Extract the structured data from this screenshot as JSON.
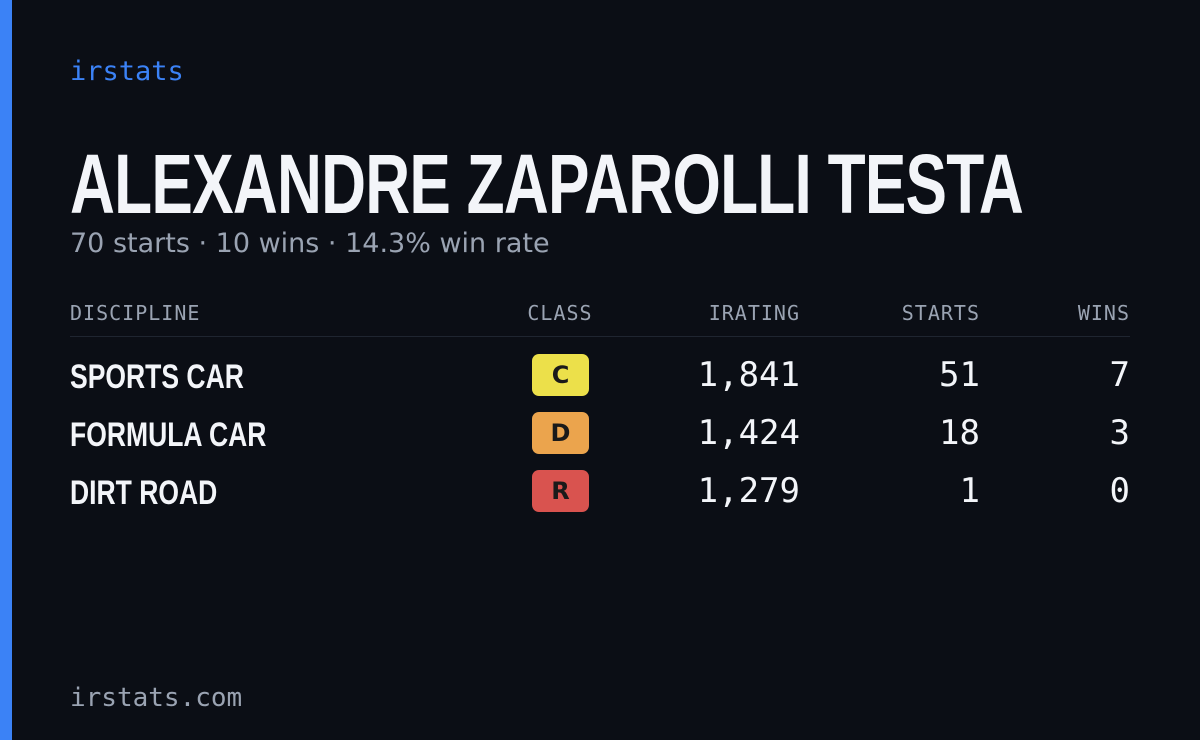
{
  "brand": "irstats",
  "driver": {
    "name": "ALEXANDRE ZAPAROLLI TESTA",
    "summary": "70 starts · 10 wins · 14.3% win rate"
  },
  "table": {
    "headers": [
      "DISCIPLINE",
      "CLASS",
      "IRATING",
      "STARTS",
      "WINS"
    ],
    "rows": [
      {
        "discipline": "SPORTS CAR",
        "class": "C",
        "class_color": "#ece04a",
        "irating": "1,841",
        "starts": 51,
        "wins": 7
      },
      {
        "discipline": "FORMULA CAR",
        "class": "D",
        "class_color": "#eba44d",
        "irating": "1,424",
        "starts": 18,
        "wins": 3
      },
      {
        "discipline": "DIRT ROAD",
        "class": "R",
        "class_color": "#d9534f",
        "irating": "1,279",
        "starts": 1,
        "wins": 0
      }
    ]
  },
  "footer": "irstats.com"
}
